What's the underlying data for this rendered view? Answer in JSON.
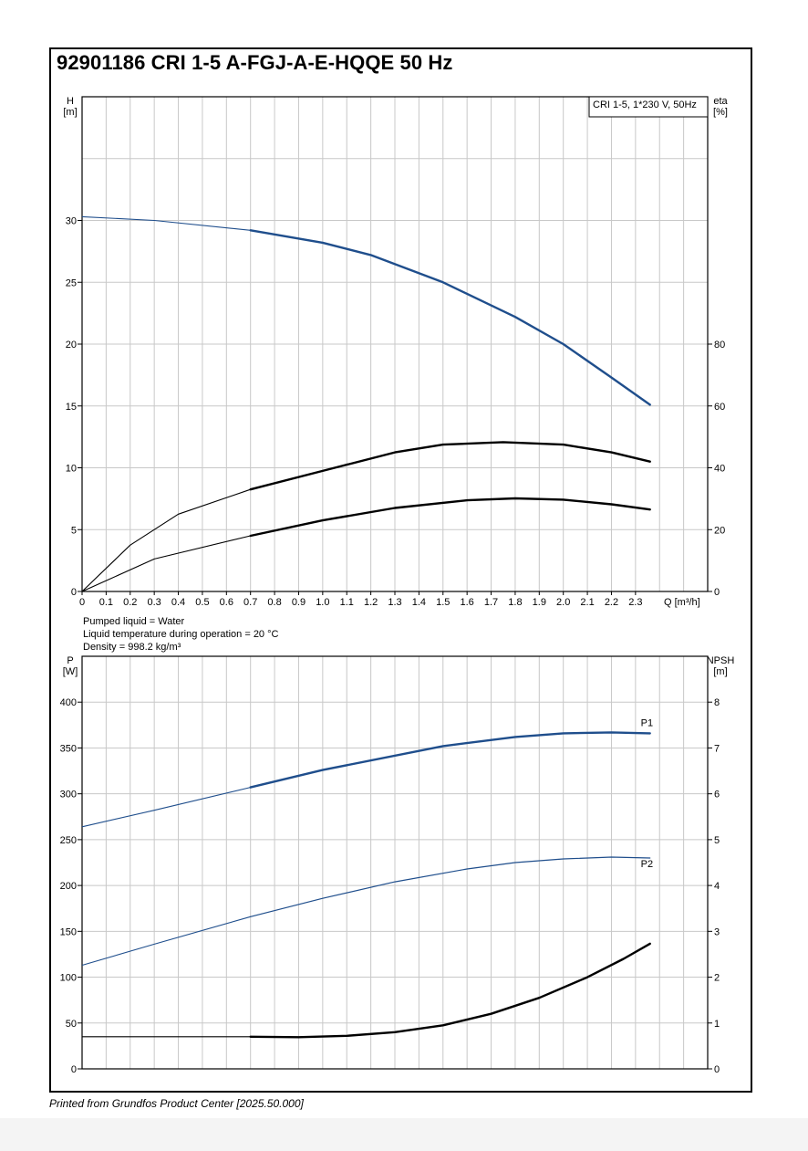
{
  "page_title": "92901186 CRI 1-5 A-FGJ-A-E-HQQE 50 Hz",
  "legend_box": "CRI 1-5, 1*230 V, 50Hz",
  "conditions": {
    "liquid": "Pumped liquid = Water",
    "temperature": "Liquid temperature during operation = 20 °C",
    "density": "Density = 998.2 kg/m³"
  },
  "footer": "Printed from Grundfos Product Center [2025.50.000]",
  "colors": {
    "curve_blue": "#1f4e8c",
    "curve_black": "#000000",
    "grid": "#c8c8c8"
  },
  "chart_data": [
    {
      "type": "line",
      "ylabel": "H",
      "yunit": "[m]",
      "y2label": "eta",
      "y2unit": "[%]",
      "xlabel": "Q [m³/h]",
      "x_ticks": [
        "0",
        "0.1",
        "0.2",
        "0.3",
        "0.4",
        "0.5",
        "0.6",
        "0.7",
        "0.8",
        "0.9",
        "1.0",
        "1.1",
        "1.2",
        "1.3",
        "1.4",
        "1.5",
        "1.6",
        "1.7",
        "1.8",
        "1.9",
        "2.0",
        "2.1",
        "2.2",
        "2.3"
      ],
      "y_ticks": [
        "0",
        "5",
        "10",
        "15",
        "20",
        "25",
        "30"
      ],
      "y2_ticks": [
        "0",
        "20",
        "40",
        "60",
        "80"
      ],
      "xlim": [
        0,
        2.6
      ],
      "ylim": [
        0,
        40
      ],
      "y2lim": [
        0,
        160
      ],
      "grid": true,
      "series": [
        {
          "key": "head",
          "axis": "left",
          "color": "blue",
          "x": [
            0,
            0.3,
            0.7,
            1.0,
            1.2,
            1.5,
            1.8,
            2.0,
            2.2,
            2.36
          ],
          "y": [
            30.3,
            30.0,
            29.2,
            28.2,
            27.2,
            25.0,
            22.2,
            20.0,
            17.3,
            15.1
          ]
        },
        {
          "key": "eta_efficiency",
          "axis": "right",
          "color": "black",
          "x": [
            0,
            0.2,
            0.4,
            0.7,
            1.0,
            1.3,
            1.5,
            1.75,
            2.0,
            2.2,
            2.36
          ],
          "y": [
            0,
            15,
            25,
            33,
            39,
            45,
            47.5,
            48.3,
            47.5,
            45,
            42
          ]
        },
        {
          "key": "eta_total",
          "axis": "right",
          "color": "black",
          "x": [
            0,
            0.3,
            0.7,
            1.0,
            1.3,
            1.6,
            1.8,
            2.0,
            2.2,
            2.36
          ],
          "y": [
            0,
            10.5,
            18,
            23,
            27,
            29.5,
            30.1,
            29.7,
            28.2,
            26.5
          ]
        }
      ]
    },
    {
      "type": "line",
      "ylabel": "P",
      "yunit": "[W]",
      "y2label": "NPSH",
      "y2unit": "[m]",
      "y_ticks": [
        "0",
        "50",
        "100",
        "150",
        "200",
        "250",
        "300",
        "350",
        "400"
      ],
      "y2_ticks": [
        "0",
        "1",
        "2",
        "3",
        "4",
        "5",
        "6",
        "7",
        "8"
      ],
      "xlim": [
        0,
        2.6
      ],
      "ylim": [
        0,
        450
      ],
      "y2lim": [
        0,
        9
      ],
      "grid": true,
      "series": [
        {
          "key": "p1",
          "name": "P1",
          "axis": "left",
          "color": "blue",
          "x": [
            0,
            0.3,
            0.7,
            1.0,
            1.5,
            1.8,
            2.0,
            2.2,
            2.36
          ],
          "y": [
            264,
            282,
            307,
            326,
            352,
            362,
            366,
            367,
            366
          ]
        },
        {
          "key": "p2",
          "name": "P2",
          "axis": "left",
          "color": "blue",
          "x": [
            0,
            0.3,
            0.7,
            1.0,
            1.3,
            1.6,
            1.8,
            2.0,
            2.2,
            2.36
          ],
          "y": [
            113,
            136,
            166,
            186,
            204,
            218,
            225,
            229,
            231,
            230
          ]
        },
        {
          "key": "npsh",
          "axis": "right",
          "color": "black",
          "x": [
            0,
            0.7,
            0.9,
            1.1,
            1.3,
            1.5,
            1.7,
            1.9,
            2.1,
            2.25,
            2.36
          ],
          "y": [
            0.7,
            0.7,
            0.69,
            0.72,
            0.8,
            0.95,
            1.2,
            1.55,
            2.0,
            2.4,
            2.73
          ]
        }
      ]
    }
  ]
}
